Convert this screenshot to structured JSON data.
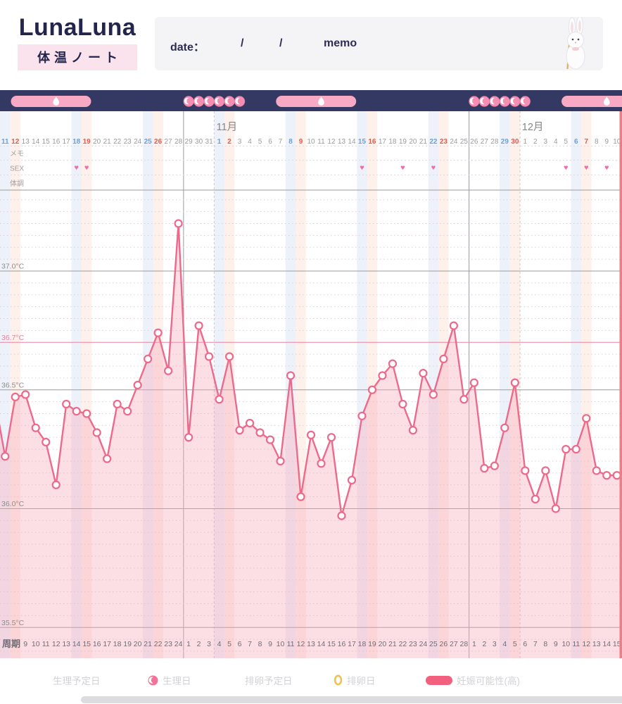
{
  "header": {
    "logo_title": "LunaLuna",
    "logo_subtitle": "体温ノート",
    "form": {
      "date_label": "date：",
      "slash1": "/",
      "slash2": "/",
      "memo_label": "memo"
    },
    "mascot": "white-rabbit-plush"
  },
  "colors": {
    "navy_bar": "#343963",
    "fertile_pill_pink": "#f8a9c3",
    "period_dot_pink": "#f48fb3",
    "temp_line_pink": "#ec6a8b",
    "area_fill_pink": "rgba(246,168,186,0.38)",
    "reference_line_pink": "#e8829d",
    "saturday_blue": "#6f9fd8",
    "sunday_red": "#d95f57",
    "heart_pink": "#ee6fa8",
    "grid_gray": "#9b9b9b"
  },
  "chart_data": {
    "type": "line",
    "ylabel_unit": "°C",
    "y_ticks": [
      {
        "t": 37.0,
        "label": "37.0°C",
        "style": "solid-gray"
      },
      {
        "t": 36.7,
        "label": "36.7°C",
        "style": "solid-pink"
      },
      {
        "t": 36.5,
        "label": "36.5°C",
        "style": "solid-gray"
      },
      {
        "t": 36.0,
        "label": "36.0°C",
        "style": "solid-gray"
      },
      {
        "t": 35.5,
        "label": "35.5°C",
        "style": "solid-gray"
      }
    ],
    "y_range_shown": [
      35.4,
      37.34
    ],
    "months": [
      {
        "label": "11月",
        "start_index": 21
      },
      {
        "label": "12月",
        "start_index": 51
      }
    ],
    "day_labels": [
      "11",
      "12",
      "13",
      "14",
      "15",
      "16",
      "17",
      "18",
      "19",
      "20",
      "21",
      "22",
      "23",
      "24",
      "25",
      "26",
      "27",
      "28",
      "29",
      "30",
      "31",
      "1",
      "2",
      "3",
      "4",
      "5",
      "6",
      "7",
      "8",
      "9",
      "10",
      "11",
      "12",
      "13",
      "14",
      "15",
      "16",
      "17",
      "18",
      "19",
      "20",
      "21",
      "22",
      "23",
      "24",
      "25",
      "26",
      "27",
      "28",
      "29",
      "30",
      "1",
      "2",
      "3",
      "4",
      "5",
      "6",
      "7",
      "8",
      "9",
      "10"
    ],
    "saturday_indices": [
      0,
      7,
      14,
      21,
      28,
      35,
      42,
      49,
      56
    ],
    "sunday_indices": [
      1,
      8,
      15,
      22,
      29,
      36,
      43,
      50,
      57
    ],
    "temps_c": [
      36.22,
      36.47,
      36.48,
      36.34,
      36.28,
      36.1,
      36.44,
      36.41,
      36.4,
      36.32,
      36.21,
      36.44,
      36.41,
      36.52,
      36.63,
      36.74,
      36.58,
      37.2,
      36.3,
      36.77,
      36.64,
      36.46,
      36.64,
      36.33,
      36.36,
      36.32,
      36.29,
      36.2,
      36.56,
      36.05,
      36.31,
      36.19,
      36.3,
      35.97,
      36.12,
      36.39,
      36.5,
      36.56,
      36.61,
      36.44,
      36.33,
      36.57,
      36.48,
      36.63,
      36.77,
      36.46,
      36.53,
      36.17,
      36.18,
      36.34,
      36.53,
      36.16,
      36.04,
      36.16,
      36.0,
      36.25,
      36.25,
      36.38,
      36.16,
      36.14,
      36.14
    ],
    "lead_in_temp_c": 36.46,
    "rows": {
      "memo_label": "メモ",
      "sex_label": "SEX",
      "condition_label": "体調",
      "cycle_label": "周期"
    },
    "sex_heart_indices": [
      7,
      8,
      35,
      39,
      42,
      55,
      57,
      59
    ],
    "period_day_indices": [
      18,
      19,
      20,
      21,
      22,
      23,
      46,
      47,
      48,
      49,
      50,
      51
    ],
    "fertile_windows": [
      {
        "start_index": 1,
        "end_index": 8,
        "ovulation_pred_index": 5,
        "clipped_right": false
      },
      {
        "start_index": 27,
        "end_index": 34,
        "ovulation_pred_index": 31,
        "clipped_right": false
      },
      {
        "start_index": 55,
        "end_index": 60,
        "ovulation_pred_index": 59,
        "clipped_right": true
      }
    ],
    "cycle_boundaries_after_index": [
      17,
      45
    ],
    "cycle_days": [
      null,
      null,
      9,
      10,
      11,
      12,
      13,
      14,
      15,
      16,
      17,
      18,
      19,
      20,
      21,
      22,
      23,
      24,
      1,
      2,
      3,
      4,
      5,
      6,
      7,
      8,
      9,
      10,
      11,
      12,
      13,
      14,
      15,
      16,
      17,
      18,
      19,
      20,
      21,
      22,
      23,
      24,
      25,
      26,
      27,
      28,
      1,
      2,
      3,
      4,
      5,
      6,
      7,
      8,
      9,
      10,
      11,
      12,
      13,
      14,
      15
    ]
  },
  "legend": {
    "items": [
      {
        "label": "生理予定日",
        "icon": "none"
      },
      {
        "label": "生理日",
        "icon": "period-crescent-icon"
      },
      {
        "label": "排卵予定日",
        "icon": "none"
      },
      {
        "label": "排卵日",
        "icon": "ovulation-ring-icon"
      },
      {
        "label": "妊娠可能性(高)",
        "icon": "fertile-pill-icon"
      }
    ]
  }
}
